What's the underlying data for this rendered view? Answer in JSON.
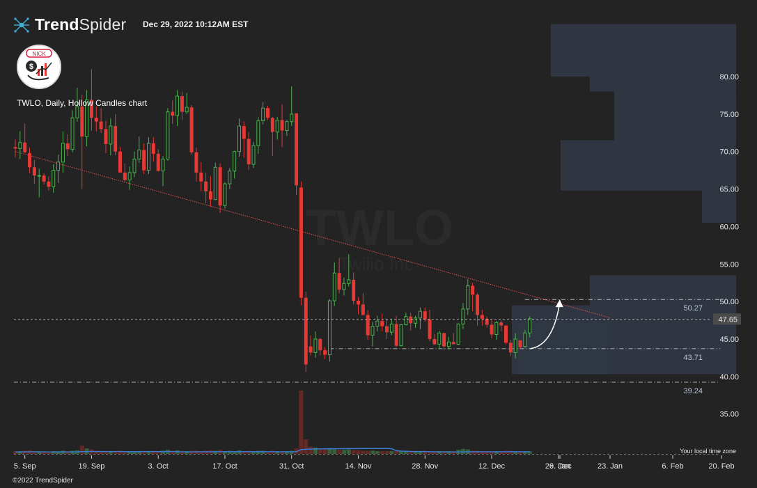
{
  "header": {
    "brand_bold": "Trend",
    "brand_light": "Spider",
    "timestamp": "Dec 29, 2022 10:12AM EST",
    "copyright": "©2022 TrendSpider",
    "local_time_note": "Your local time zone",
    "avatar_text": "NICK"
  },
  "chart_data": {
    "type": "candlestick",
    "title": "TWLO, Daily, Hollow Candles chart",
    "symbol": "TWLO",
    "watermark_sub": "Twilio Inc",
    "colors": {
      "up": "#4caf50",
      "down": "#e53935",
      "trendline": "#e05050",
      "volume_profile": "#2f3642",
      "last_price": "#d0d0d0"
    },
    "y_axis": {
      "ticks": [
        35,
        40,
        45,
        50,
        55,
        60,
        65,
        70,
        75,
        80
      ],
      "ylim": [
        31.2,
        83.8
      ]
    },
    "x_ticks": [
      "5. Sep",
      "19. Sep",
      "3. Oct",
      "17. Oct",
      "31. Oct",
      "14. Nov",
      "28. Nov",
      "12. Dec",
      "26. Dec",
      "9. Jan",
      "23. Jan",
      "6. Feb",
      "20. Feb"
    ],
    "candles": [
      [
        70.6,
        71.6,
        69.2,
        70.4
      ],
      [
        70.4,
        72.7,
        69.0,
        71.2
      ],
      [
        71.2,
        73.7,
        69.8,
        69.9
      ],
      [
        69.8,
        70.5,
        67.1,
        67.9
      ],
      [
        67.9,
        68.9,
        65.7,
        66.8
      ],
      [
        66.8,
        67.7,
        63.9,
        66.8
      ],
      [
        66.8,
        67.1,
        65.6,
        66.0
      ],
      [
        66.0,
        66.7,
        64.8,
        65.3
      ],
      [
        65.3,
        68.3,
        64.5,
        67.5
      ],
      [
        67.5,
        69.6,
        65.8,
        68.6
      ],
      [
        68.6,
        72.7,
        67.2,
        71.1
      ],
      [
        71.1,
        72.3,
        69.4,
        70.3
      ],
      [
        70.3,
        75.5,
        69.9,
        74.5
      ],
      [
        74.5,
        78.5,
        74.0,
        76.0
      ],
      [
        76.0,
        77.6,
        65.0,
        72.0
      ],
      [
        72.0,
        78.2,
        70.7,
        76.9
      ],
      [
        76.9,
        81.0,
        72.8,
        74.5
      ],
      [
        74.5,
        76.0,
        72.7,
        74.0
      ],
      [
        74.0,
        75.8,
        72.5,
        73.0
      ],
      [
        73.0,
        74.1,
        69.8,
        71.0
      ],
      [
        71.0,
        74.4,
        69.5,
        73.4
      ],
      [
        73.4,
        75.0,
        69.5,
        70.0
      ],
      [
        70.0,
        70.6,
        67.2,
        67.2
      ],
      [
        67.2,
        68.4,
        66.0,
        66.2
      ],
      [
        66.2,
        68.0,
        64.9,
        67.2
      ],
      [
        67.2,
        70.0,
        66.6,
        69.0
      ],
      [
        69.0,
        72.0,
        68.5,
        70.2
      ],
      [
        70.2,
        71.1,
        67.0,
        67.5
      ],
      [
        67.5,
        71.9,
        67.0,
        71.1
      ],
      [
        71.1,
        71.9,
        68.7,
        69.7
      ],
      [
        69.7,
        70.3,
        67.4,
        67.4
      ],
      [
        67.4,
        69.4,
        65.4,
        69.0
      ],
      [
        69.0,
        75.8,
        68.8,
        75.3
      ],
      [
        75.3,
        76.8,
        73.7,
        74.8
      ],
      [
        74.8,
        78.2,
        73.4,
        77.4
      ],
      [
        77.4,
        78.0,
        74.2,
        75.3
      ],
      [
        75.3,
        77.8,
        75.0,
        75.9
      ],
      [
        75.9,
        76.2,
        69.6,
        69.9
      ],
      [
        69.9,
        70.5,
        66.0,
        67.2
      ],
      [
        67.2,
        68.6,
        64.7,
        66.0
      ],
      [
        66.0,
        67.2,
        63.1,
        64.7
      ],
      [
        64.7,
        66.7,
        62.6,
        63.6
      ],
      [
        63.6,
        68.5,
        63.6,
        67.9
      ],
      [
        67.9,
        68.4,
        61.8,
        62.8
      ],
      [
        62.8,
        65.9,
        62.4,
        65.7
      ],
      [
        65.7,
        67.8,
        65.0,
        67.4
      ],
      [
        67.4,
        70.1,
        66.4,
        70.0
      ],
      [
        70.0,
        74.4,
        69.3,
        73.4
      ],
      [
        73.4,
        74.0,
        69.2,
        71.7
      ],
      [
        71.7,
        72.6,
        67.6,
        68.3
      ],
      [
        68.3,
        71.3,
        67.8,
        70.8
      ],
      [
        70.8,
        74.6,
        69.7,
        74.1
      ],
      [
        74.1,
        76.6,
        73.6,
        75.8
      ],
      [
        75.8,
        76.1,
        74.2,
        74.5
      ],
      [
        74.5,
        74.6,
        69.4,
        72.6
      ],
      [
        72.6,
        74.6,
        71.6,
        74.2
      ],
      [
        74.2,
        76.3,
        70.6,
        72.8
      ],
      [
        72.8,
        74.2,
        72.1,
        74.0
      ],
      [
        74.0,
        78.7,
        73.4,
        75.0
      ],
      [
        75.1,
        75.1,
        64.2,
        65.5
      ],
      [
        65.2,
        66.0,
        49.5,
        50.5
      ],
      [
        50.5,
        51.3,
        40.6,
        41.6
      ],
      [
        44.0,
        45.5,
        42.8,
        43.2
      ],
      [
        43.2,
        46.0,
        42.5,
        45.0
      ],
      [
        45.0,
        45.1,
        42.8,
        43.5
      ],
      [
        43.5,
        43.9,
        42.3,
        42.9
      ],
      [
        42.9,
        50.3,
        42.0,
        50.1
      ],
      [
        50.1,
        55.2,
        49.4,
        53.8
      ],
      [
        53.8,
        55.8,
        51.1,
        51.6
      ],
      [
        51.6,
        53.2,
        50.8,
        52.4
      ],
      [
        52.4,
        56.3,
        52.0,
        52.9
      ],
      [
        52.9,
        53.9,
        49.6,
        50.1
      ],
      [
        50.1,
        50.6,
        48.3,
        49.6
      ],
      [
        49.6,
        51.1,
        48.6,
        48.2
      ],
      [
        48.2,
        48.8,
        44.9,
        45.5
      ],
      [
        45.5,
        47.3,
        44.0,
        46.7
      ],
      [
        46.7,
        48.1,
        46.0,
        47.4
      ],
      [
        47.4,
        48.4,
        46.0,
        46.7
      ],
      [
        46.7,
        47.7,
        45.0,
        45.9
      ],
      [
        45.9,
        47.7,
        45.5,
        47.0
      ],
      [
        47.0,
        48.1,
        43.9,
        44.1
      ],
      [
        44.1,
        47.0,
        44.0,
        46.9
      ],
      [
        46.9,
        48.5,
        46.8,
        48.0
      ],
      [
        48.0,
        48.5,
        46.1,
        47.1
      ],
      [
        47.1,
        48.1,
        46.5,
        47.8
      ],
      [
        47.8,
        49.2,
        46.3,
        48.7
      ],
      [
        48.7,
        49.2,
        47.3,
        47.6
      ],
      [
        47.6,
        48.9,
        44.7,
        45.0
      ],
      [
        45.0,
        45.7,
        44.2,
        44.3
      ],
      [
        44.3,
        46.1,
        43.6,
        45.8
      ],
      [
        45.8,
        45.8,
        43.5,
        44.0
      ],
      [
        44.0,
        45.3,
        43.6,
        44.6
      ],
      [
        44.6,
        45.8,
        44.3,
        44.3
      ],
      [
        44.3,
        47.1,
        44.2,
        47.0
      ],
      [
        47.0,
        49.8,
        46.3,
        49.0
      ],
      [
        49.0,
        53.0,
        48.2,
        52.1
      ],
      [
        52.1,
        52.5,
        48.7,
        50.9
      ],
      [
        50.9,
        51.1,
        46.8,
        48.2
      ],
      [
        48.2,
        48.9,
        46.8,
        47.7
      ],
      [
        47.7,
        48.0,
        46.5,
        46.9
      ],
      [
        46.9,
        47.6,
        45.1,
        45.6
      ],
      [
        45.6,
        47.4,
        44.9,
        47.2
      ],
      [
        47.2,
        47.5,
        46.0,
        46.8
      ],
      [
        46.8,
        46.8,
        44.3,
        44.5
      ],
      [
        44.5,
        44.9,
        42.7,
        43.2
      ],
      [
        43.2,
        45.8,
        42.4,
        45.0
      ],
      [
        44.8,
        44.9,
        43.6,
        43.9
      ],
      [
        44.0,
        46.2,
        43.8,
        45.8
      ],
      [
        45.8,
        48.0,
        45.2,
        47.7
      ]
    ],
    "volume_ratio": [
      0.3,
      0.3,
      0.35,
      0.4,
      0.3,
      0.3,
      0.3,
      0.25,
      0.3,
      0.3,
      0.35,
      0.3,
      0.35,
      0.4,
      0.9,
      0.6,
      0.5,
      0.35,
      0.3,
      0.3,
      0.3,
      0.3,
      0.35,
      0.3,
      0.3,
      0.3,
      0.3,
      0.3,
      0.3,
      0.3,
      0.3,
      0.35,
      0.45,
      0.35,
      0.4,
      0.35,
      0.3,
      0.35,
      0.35,
      0.3,
      0.35,
      0.4,
      0.35,
      0.45,
      0.3,
      0.35,
      0.3,
      0.4,
      0.3,
      0.35,
      0.3,
      0.35,
      0.35,
      0.3,
      0.35,
      0.3,
      0.3,
      0.3,
      0.35,
      0.6,
      7.0,
      1.6,
      0.8,
      0.7,
      0.6,
      0.5,
      0.6,
      0.55,
      0.45,
      0.45,
      0.5,
      0.4,
      0.4,
      0.35,
      0.35,
      0.35,
      0.3,
      0.3,
      0.3,
      0.3,
      0.3,
      0.3,
      0.3,
      0.3,
      0.3,
      0.3,
      0.35,
      0.3,
      0.3,
      0.3,
      0.3,
      0.3,
      0.3,
      0.45,
      0.55,
      0.5,
      0.35,
      0.35,
      0.3,
      0.3,
      0.3,
      0.3,
      0.3,
      0.35,
      0.35,
      0.3,
      0.3,
      0.3,
      0.3
    ],
    "levels": [
      {
        "price": 50.27,
        "label": "50.27"
      },
      {
        "price": 43.71,
        "label": "43.71"
      },
      {
        "price": 39.24,
        "label": "39.24"
      }
    ],
    "last_price": {
      "value": 47.65,
      "label": "47.65"
    },
    "trendline": {
      "start": [
        0,
        70.0
      ],
      "end": [
        125,
        47.8
      ]
    },
    "projection_arrow": {
      "from": [
        108,
        43.7
      ],
      "to": [
        114,
        50.0
      ]
    },
    "highlight_zone": {
      "from_index": 106,
      "to_index": 125,
      "price_low": 40.3,
      "price_high": 47.5
    },
    "volume_profile": [
      [
        80.0,
        87.0,
        0.38
      ],
      [
        78.0,
        80.0,
        0.3
      ],
      [
        71.5,
        78.0,
        0.25
      ],
      [
        64.8,
        71.5,
        0.36
      ],
      [
        60.5,
        64.8,
        0.07
      ],
      [
        53.5,
        60.5,
        0.0
      ],
      [
        49.5,
        53.5,
        0.3
      ],
      [
        40.3,
        49.5,
        0.46
      ]
    ]
  }
}
